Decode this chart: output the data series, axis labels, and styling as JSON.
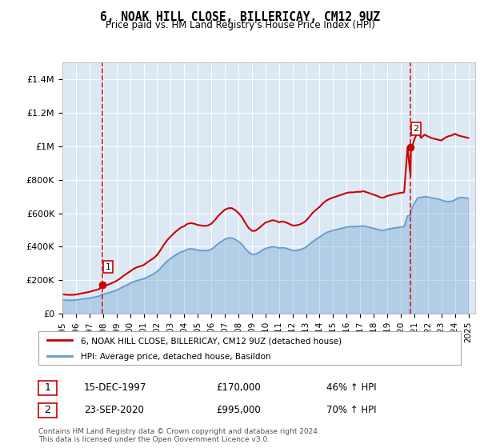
{
  "title": "6, NOAK HILL CLOSE, BILLERICAY, CM12 9UZ",
  "subtitle": "Price paid vs. HM Land Registry's House Price Index (HPI)",
  "legend_line1": "6, NOAK HILL CLOSE, BILLERICAY, CM12 9UZ (detached house)",
  "legend_line2": "HPI: Average price, detached house, Basildon",
  "footnote": "Contains HM Land Registry data © Crown copyright and database right 2024.\nThis data is licensed under the Open Government Licence v3.0.",
  "annotation1_label": "1",
  "annotation1_date": "15-DEC-1997",
  "annotation1_price": "£170,000",
  "annotation1_hpi": "46% ↑ HPI",
  "annotation1_year": 1997.96,
  "annotation1_value": 170000,
  "annotation2_label": "2",
  "annotation2_date": "23-SEP-2020",
  "annotation2_price": "£995,000",
  "annotation2_hpi": "70% ↑ HPI",
  "annotation2_year": 2020.72,
  "annotation2_value": 995000,
  "ylim": [
    0,
    1500000
  ],
  "yticks": [
    0,
    200000,
    400000,
    600000,
    800000,
    1000000,
    1200000,
    1400000
  ],
  "ytick_labels": [
    "£0",
    "£200K",
    "£400K",
    "£600K",
    "£800K",
    "£1M",
    "£1.2M",
    "£1.4M"
  ],
  "red_color": "#cc0000",
  "blue_color": "#6699cc",
  "bg_color": "#dce9f5",
  "grid_color": "#ffffff",
  "ann_box_color": "#cc0000",
  "hpi_series_years": [
    1995.0,
    1995.25,
    1995.5,
    1995.75,
    1996.0,
    1996.25,
    1996.5,
    1996.75,
    1997.0,
    1997.25,
    1997.5,
    1997.75,
    1997.96,
    1998.0,
    1998.25,
    1998.5,
    1998.75,
    1999.0,
    1999.25,
    1999.5,
    1999.75,
    2000.0,
    2000.25,
    2000.5,
    2000.75,
    2001.0,
    2001.25,
    2001.5,
    2001.75,
    2002.0,
    2002.25,
    2002.5,
    2002.75,
    2003.0,
    2003.25,
    2003.5,
    2003.75,
    2004.0,
    2004.25,
    2004.5,
    2004.75,
    2005.0,
    2005.25,
    2005.5,
    2005.75,
    2006.0,
    2006.25,
    2006.5,
    2006.75,
    2007.0,
    2007.25,
    2007.5,
    2007.75,
    2008.0,
    2008.25,
    2008.5,
    2008.75,
    2009.0,
    2009.25,
    2009.5,
    2009.75,
    2010.0,
    2010.25,
    2010.5,
    2010.75,
    2011.0,
    2011.25,
    2011.5,
    2011.75,
    2012.0,
    2012.25,
    2012.5,
    2012.75,
    2013.0,
    2013.25,
    2013.5,
    2013.75,
    2014.0,
    2014.25,
    2014.5,
    2014.75,
    2015.0,
    2015.25,
    2015.5,
    2015.75,
    2016.0,
    2016.25,
    2016.5,
    2016.75,
    2017.0,
    2017.25,
    2017.5,
    2017.75,
    2018.0,
    2018.25,
    2018.5,
    2018.75,
    2019.0,
    2019.25,
    2019.5,
    2019.75,
    2020.0,
    2020.25,
    2020.5,
    2020.72,
    2020.75,
    2021.0,
    2021.25,
    2021.5,
    2021.75,
    2022.0,
    2022.25,
    2022.5,
    2022.75,
    2023.0,
    2023.25,
    2023.5,
    2023.75,
    2024.0,
    2024.25,
    2024.5,
    2024.75,
    2025.0
  ],
  "hpi_values": [
    82000,
    81000,
    80000,
    80500,
    82000,
    85000,
    88000,
    90000,
    93000,
    97000,
    101000,
    106000,
    116000,
    116500,
    121000,
    127000,
    133000,
    140000,
    150000,
    161000,
    171000,
    181000,
    191000,
    198000,
    203000,
    208000,
    218000,
    228000,
    238000,
    252000,
    272000,
    295000,
    315000,
    330000,
    345000,
    358000,
    368000,
    375000,
    385000,
    388000,
    385000,
    380000,
    378000,
    376000,
    378000,
    385000,
    400000,
    418000,
    432000,
    445000,
    452000,
    452000,
    445000,
    432000,
    415000,
    390000,
    368000,
    355000,
    355000,
    365000,
    378000,
    390000,
    395000,
    400000,
    398000,
    392000,
    395000,
    392000,
    385000,
    378000,
    378000,
    382000,
    388000,
    398000,
    415000,
    432000,
    445000,
    458000,
    472000,
    485000,
    492000,
    498000,
    502000,
    508000,
    512000,
    518000,
    520000,
    520000,
    522000,
    522000,
    525000,
    520000,
    515000,
    510000,
    505000,
    498000,
    498000,
    505000,
    508000,
    512000,
    515000,
    518000,
    520000,
    585000,
    588000,
    620000,
    660000,
    692000,
    695000,
    700000,
    698000,
    692000,
    690000,
    685000,
    680000,
    672000,
    670000,
    672000,
    680000,
    692000,
    695000,
    692000,
    690000
  ],
  "red_series_years": [
    1995.0,
    1995.25,
    1995.5,
    1995.75,
    1996.0,
    1996.25,
    1996.5,
    1996.75,
    1997.0,
    1997.25,
    1997.5,
    1997.75,
    1997.96,
    1998.0,
    1998.25,
    1998.5,
    1998.75,
    1999.0,
    1999.25,
    1999.5,
    1999.75,
    2000.0,
    2000.25,
    2000.5,
    2000.75,
    2001.0,
    2001.25,
    2001.5,
    2001.75,
    2002.0,
    2002.25,
    2002.5,
    2002.75,
    2003.0,
    2003.25,
    2003.5,
    2003.75,
    2004.0,
    2004.25,
    2004.5,
    2004.75,
    2005.0,
    2005.25,
    2005.5,
    2005.75,
    2006.0,
    2006.25,
    2006.5,
    2006.75,
    2007.0,
    2007.25,
    2007.5,
    2007.75,
    2008.0,
    2008.25,
    2008.5,
    2008.75,
    2009.0,
    2009.25,
    2009.5,
    2009.75,
    2010.0,
    2010.25,
    2010.5,
    2010.75,
    2011.0,
    2011.25,
    2011.5,
    2011.75,
    2012.0,
    2012.25,
    2012.5,
    2012.75,
    2013.0,
    2013.25,
    2013.5,
    2013.75,
    2014.0,
    2014.25,
    2014.5,
    2014.75,
    2015.0,
    2015.25,
    2015.5,
    2015.75,
    2016.0,
    2016.25,
    2016.5,
    2016.75,
    2017.0,
    2017.25,
    2017.5,
    2017.75,
    2018.0,
    2018.25,
    2018.5,
    2018.75,
    2019.0,
    2019.25,
    2019.5,
    2019.75,
    2020.0,
    2020.25,
    2020.5,
    2020.72,
    2020.75,
    2021.0,
    2021.25,
    2021.5,
    2021.75,
    2022.0,
    2022.25,
    2022.5,
    2022.75,
    2023.0,
    2023.25,
    2023.5,
    2023.75,
    2024.0,
    2024.25,
    2024.5,
    2024.75,
    2025.0
  ],
  "red_values": [
    115000,
    113000,
    112000,
    112000,
    114000,
    118000,
    122000,
    126000,
    130000,
    136000,
    141000,
    148000,
    170000,
    163000,
    169000,
    177000,
    186000,
    196000,
    209000,
    225000,
    239000,
    252000,
    267000,
    277000,
    283000,
    290000,
    305000,
    319000,
    332000,
    351000,
    380000,
    412000,
    440000,
    461000,
    481000,
    499000,
    514000,
    523000,
    537000,
    541000,
    537000,
    530000,
    527000,
    524000,
    527000,
    537000,
    558000,
    583000,
    603000,
    621000,
    630000,
    631000,
    620000,
    602000,
    579000,
    544000,
    513000,
    495000,
    495000,
    509000,
    527000,
    544000,
    551000,
    558000,
    555000,
    546000,
    551000,
    546000,
    537000,
    527000,
    527000,
    532000,
    541000,
    555000,
    579000,
    603000,
    621000,
    638000,
    659000,
    676000,
    686000,
    694000,
    700000,
    708000,
    714000,
    722000,
    725000,
    725000,
    728000,
    728000,
    732000,
    725000,
    718000,
    711000,
    704000,
    694000,
    694000,
    704000,
    708000,
    714000,
    718000,
    722000,
    725000,
    995000,
    820000,
    976000,
    1040000,
    1090000,
    1050000,
    1070000,
    1060000,
    1050000,
    1045000,
    1040000,
    1035000,
    1050000,
    1060000,
    1065000,
    1075000,
    1065000,
    1060000,
    1055000,
    1050000
  ],
  "xticks": [
    1995,
    1996,
    1997,
    1998,
    1999,
    2000,
    2001,
    2002,
    2003,
    2004,
    2005,
    2006,
    2007,
    2008,
    2009,
    2010,
    2011,
    2012,
    2013,
    2014,
    2015,
    2016,
    2017,
    2018,
    2019,
    2020,
    2021,
    2022,
    2023,
    2024,
    2025
  ]
}
